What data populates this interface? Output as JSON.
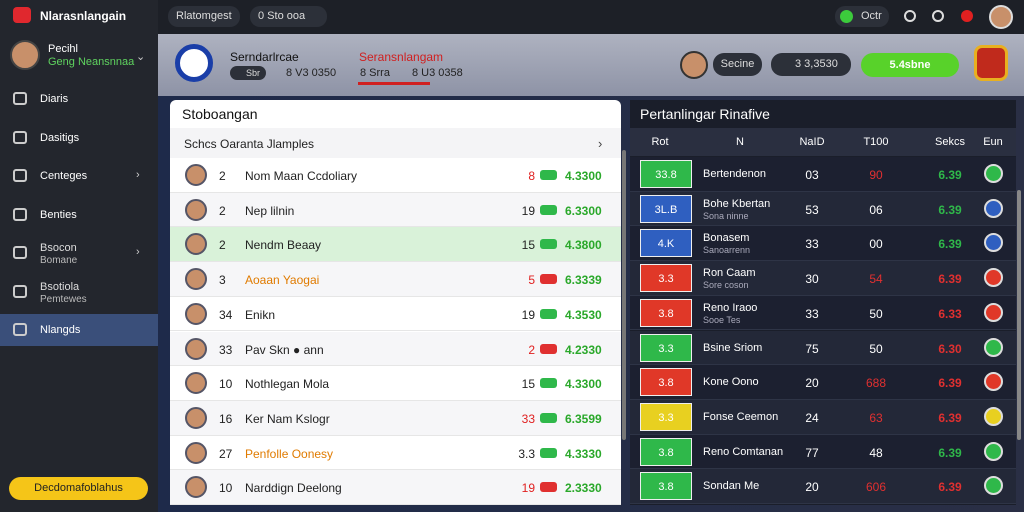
{
  "sidebar": {
    "brand": "Nlarasnlangain",
    "user_name": "Pecihl",
    "user_sub": "Geng Neansnnaa",
    "menu": [
      {
        "label": "Diaris"
      },
      {
        "label": "Dasitigs"
      },
      {
        "label": "Centeges"
      },
      {
        "label": "Benties"
      },
      {
        "label": "Bsocon",
        "sub": "Bomane"
      },
      {
        "label": "Bsotiola",
        "sub": "Pemtewes"
      },
      {
        "label": "Nlangds",
        "active": true
      }
    ],
    "footer_button": "Decdomafoblahus"
  },
  "topbar": {
    "search": "Rlatomgest",
    "dropdown": "0 Sto ooa",
    "status": "Octr"
  },
  "header": {
    "team": "Serndarlrcae",
    "team_badge": "Sbr",
    "team_score": "8 V3 0350",
    "tab": "Seransnlangam",
    "tab_badge": "8 Srra",
    "tab_score": "8 U3 0358",
    "user": "Secine",
    "balance": "3 3,3530",
    "button": "5.4sbne"
  },
  "left_panel": {
    "title": "Stoboangan",
    "subtitle": "Schcs Oaranta Jlamples",
    "rows": [
      {
        "rank": "2",
        "name": "Nom Maan Ccdoliary",
        "score": "8",
        "value": "4.3300",
        "badge_color": "#2fb84a",
        "score_color": "#e02020"
      },
      {
        "rank": "2",
        "name": "Nep lilnin",
        "score": "19",
        "value": "6.3300",
        "badge_color": "#2fb84a",
        "score_color": "#222222"
      },
      {
        "rank": "2",
        "name": "Nendm Beaay",
        "score": "15",
        "value": "4.3800",
        "badge_color": "#2fb84a",
        "score_color": "#222222",
        "highlight": true
      },
      {
        "rank": "3",
        "name": "Aoaan Yaogai",
        "score": "5",
        "value": "6.3339",
        "badge_color": "#e03030",
        "score_color": "#e02020",
        "name_color": "#e07b00"
      },
      {
        "rank": "34",
        "name": "Enikn",
        "score": "19",
        "value": "4.3530",
        "badge_color": "#2fb84a",
        "score_color": "#222222"
      },
      {
        "rank": "33",
        "name": "Pav Skn ● ann",
        "score": "2",
        "value": "4.2330",
        "badge_color": "#e03030",
        "score_color": "#e02020"
      },
      {
        "rank": "10",
        "name": "Nothlegan Mola",
        "score": "15",
        "value": "4.3300",
        "badge_color": "#2fb84a",
        "score_color": "#222222"
      },
      {
        "rank": "16",
        "name": "Ker Nam Kslogr",
        "score": "33",
        "value": "6.3599",
        "badge_color": "#2fb84a",
        "score_color": "#e02020"
      },
      {
        "rank": "27",
        "name": "Penfolle Oonesy",
        "score": "3.3",
        "value": "4.3330",
        "badge_color": "#2fb84a",
        "score_color": "#222222",
        "name_color": "#e07b00"
      },
      {
        "rank": "10",
        "name": "Narddign Deelong",
        "score": "19",
        "value": "2.3330",
        "badge_color": "#e03030",
        "score_color": "#e02020"
      }
    ]
  },
  "right_panel": {
    "title": "Pertanlingar Rinafive",
    "columns": [
      "Rot",
      "N",
      "NaID",
      "T100",
      "Sekcs",
      "Eun"
    ],
    "rows": [
      {
        "tag": "33.8",
        "tag_color": "#2fb84a",
        "name": "Bertendenon",
        "c3": "03",
        "c4": "90",
        "c4_color": "#e03030",
        "c5": "6.39",
        "c5_color": "#2fb84a"
      },
      {
        "tag": "3L.B",
        "tag_color": "#2f5fc0",
        "name": "Bohe Kbertan",
        "sub": "Sona ninne",
        "c3": "53",
        "c4": "06",
        "c4_color": "#ffffff",
        "c5": "6.39",
        "c5_color": "#2fb84a"
      },
      {
        "tag": "4.K",
        "tag_color": "#2f5fc0",
        "name": "Bonasem",
        "sub": "Sanoarrenn",
        "c3": "33",
        "c4": "00",
        "c4_color": "#ffffff",
        "c5": "6.39",
        "c5_color": "#2fb84a"
      },
      {
        "tag": "3.3",
        "tag_color": "#e03828",
        "name": "Ron Caam",
        "sub": "Sore coson",
        "c3": "30",
        "c4": "54",
        "c4_color": "#e03030",
        "c5": "6.39",
        "c5_color": "#e03030"
      },
      {
        "tag": "3.8",
        "tag_color": "#e03828",
        "name": "Reno Iraoo",
        "sub": "Sooe Tes",
        "c3": "33",
        "c4": "50",
        "c4_color": "#ffffff",
        "c5": "6.33",
        "c5_color": "#e03030"
      },
      {
        "tag": "3.3",
        "tag_color": "#2fb84a",
        "name": "Bsine Sriom",
        "c3": "75",
        "c4": "50",
        "c4_color": "#ffffff",
        "c5": "6.30",
        "c5_color": "#e03030"
      },
      {
        "tag": "3.8",
        "tag_color": "#e03828",
        "name": "Kone Oono",
        "c3": "20",
        "c4": "688",
        "c4_color": "#e03030",
        "c5": "6.39",
        "c5_color": "#e03030"
      },
      {
        "tag": "3.3",
        "tag_color": "#e8d020",
        "name": "Fonse Ceemon",
        "c3": "24",
        "c4": "63",
        "c4_color": "#e03030",
        "c5": "6.39",
        "c5_color": "#e03030"
      },
      {
        "tag": "3.8",
        "tag_color": "#2fb84a",
        "name": "Reno Comtanan",
        "c3": "77",
        "c4": "48",
        "c4_color": "#ffffff",
        "c5": "6.39",
        "c5_color": "#2fb84a"
      },
      {
        "tag": "3.8",
        "tag_color": "#2fb84a",
        "name": "Sondan Me",
        "c3": "20",
        "c4": "606",
        "c4_color": "#e03030",
        "c5": "6.39",
        "c5_color": "#e03030"
      }
    ]
  }
}
